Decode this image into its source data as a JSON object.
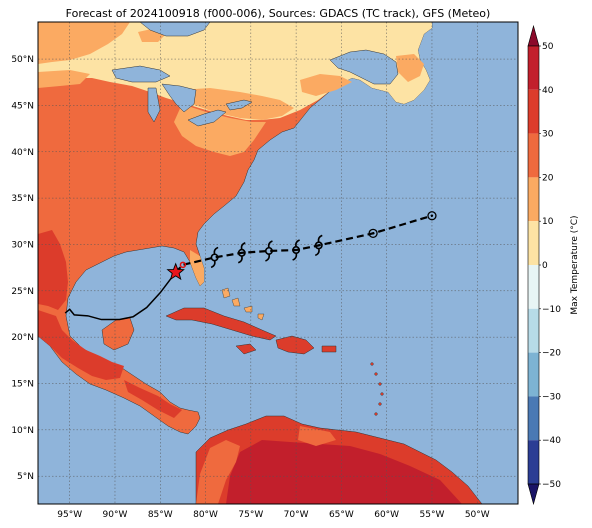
{
  "title": "Forecast of 2024100918 (f000-006), Sources: GDACS (TC track), GFS (Meteo)",
  "colorbar": {
    "label": "Max Temperature (°C)",
    "ticks": [
      "50",
      "40",
      "30",
      "20",
      "10",
      "0",
      "−10",
      "−20",
      "−30",
      "−40",
      "−50"
    ],
    "colors": [
      "#8b0a2a",
      "#c21f2c",
      "#dc3c2b",
      "#ef6a3e",
      "#fbaa62",
      "#fde3a4",
      "#e8f5f5",
      "#b7dbe8",
      "#7db3d3",
      "#4a79b4",
      "#2b3d94",
      "#1a1466"
    ]
  },
  "map": {
    "lon_labels": [
      "95°W",
      "90°W",
      "85°W",
      "80°W",
      "75°W",
      "70°W",
      "65°W",
      "60°W",
      "55°W",
      "50°W"
    ],
    "lat_labels": [
      "50°N",
      "45°N",
      "40°N",
      "35°N",
      "30°N",
      "25°N",
      "20°N",
      "15°N",
      "10°N",
      "5°N"
    ],
    "lon_range": [
      -98.5,
      -45.5
    ],
    "lat_range": [
      2,
      54
    ],
    "ocean_color": "#8fb4da",
    "gridlines": true
  },
  "track": {
    "past_points": [
      {
        "lon": -95.5,
        "lat": 22.6
      },
      {
        "lon": -95.0,
        "lat": 23.0
      },
      {
        "lon": -94.5,
        "lat": 22.4
      },
      {
        "lon": -93.0,
        "lat": 22.3
      },
      {
        "lon": -91.5,
        "lat": 21.9
      },
      {
        "lon": -89.5,
        "lat": 21.9
      },
      {
        "lon": -88.0,
        "lat": 22.2
      },
      {
        "lon": -86.5,
        "lat": 23.2
      },
      {
        "lon": -85.0,
        "lat": 24.8
      },
      {
        "lon": -83.3,
        "lat": 27.0
      }
    ],
    "current_position": {
      "lon": -83.3,
      "lat": 27.0
    },
    "forecast_points": [
      {
        "lon": -82.5,
        "lat": 27.8,
        "symbol": "small-storm"
      },
      {
        "lon": -79.0,
        "lat": 28.6,
        "symbol": "cyclone"
      },
      {
        "lon": -76.0,
        "lat": 29.1,
        "symbol": "cyclone"
      },
      {
        "lon": -73.0,
        "lat": 29.3,
        "symbol": "cyclone"
      },
      {
        "lon": -70.0,
        "lat": 29.4,
        "symbol": "cyclone"
      },
      {
        "lon": -67.5,
        "lat": 29.9,
        "symbol": "cyclone"
      },
      {
        "lon": -61.5,
        "lat": 31.2,
        "symbol": "low"
      },
      {
        "lon": -55.0,
        "lat": 33.1,
        "symbol": "low"
      }
    ]
  }
}
